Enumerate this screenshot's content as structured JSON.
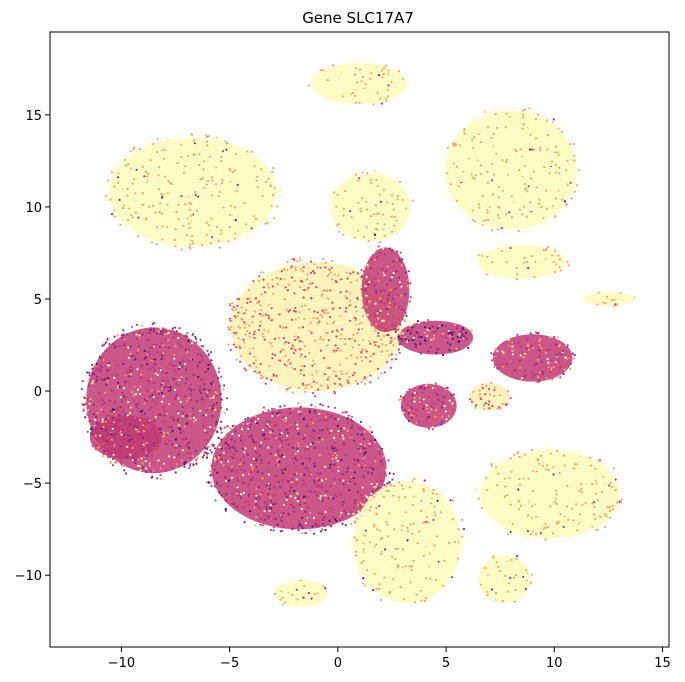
{
  "chart_data": {
    "type": "scatter",
    "title": "Gene SLC17A7",
    "xlabel": "",
    "ylabel": "",
    "xlim": [
      -13.3,
      15.3
    ],
    "ylim": [
      -13.9,
      19.5
    ],
    "xticks": [
      -10,
      -5,
      0,
      5,
      10,
      15
    ],
    "yticks": [
      -10,
      -5,
      0,
      5,
      10,
      15
    ],
    "xtick_labels": [
      "−10",
      "−5",
      "0",
      "5",
      "10",
      "15"
    ],
    "ytick_labels": [
      "−10",
      "−5",
      "0",
      "5",
      "10",
      "15"
    ],
    "grid": false,
    "legend": "none",
    "colormap": [
      "#fcfdbf",
      "#fe9f6d",
      "#de4968",
      "#b73779",
      "#8c2981",
      "#51127c"
    ],
    "clusters": [
      {
        "name": "top-center",
        "cx": 1.0,
        "cy": 16.7,
        "rx": 2.4,
        "ry": 1.2,
        "expr": 0.05
      },
      {
        "name": "top-left",
        "cx": -6.7,
        "cy": 10.8,
        "rx": 4.2,
        "ry": 3.2,
        "expr": 0.05
      },
      {
        "name": "top-mid",
        "cx": 1.5,
        "cy": 10.0,
        "rx": 2.0,
        "ry": 2.0,
        "expr": 0.08
      },
      {
        "name": "top-right",
        "cx": 8.0,
        "cy": 12.0,
        "rx": 3.3,
        "ry": 3.5,
        "expr": 0.06
      },
      {
        "name": "right-upper",
        "cx": 8.5,
        "cy": 7.0,
        "rx": 2.2,
        "ry": 1.0,
        "expr": 0.05
      },
      {
        "name": "right-spur",
        "cx": 12.5,
        "cy": 5.0,
        "rx": 1.3,
        "ry": 0.4,
        "expr": 0.05
      },
      {
        "name": "center-diffuse",
        "cx": -1.0,
        "cy": 3.5,
        "rx": 4.3,
        "ry": 3.8,
        "expr": 0.22
      },
      {
        "name": "center-diagonal",
        "cx": 2.2,
        "cy": 5.5,
        "rx": 1.2,
        "ry": 2.5,
        "expr": 0.55
      },
      {
        "name": "center-right-dark",
        "cx": 4.5,
        "cy": 2.9,
        "rx": 1.9,
        "ry": 1.0,
        "expr": 0.85
      },
      {
        "name": "right-pink",
        "cx": 9.0,
        "cy": 1.8,
        "rx": 2.0,
        "ry": 1.4,
        "expr": 0.5
      },
      {
        "name": "left-magenta",
        "cx": -8.5,
        "cy": -0.5,
        "rx": 3.4,
        "ry": 4.3,
        "expr": 0.62
      },
      {
        "name": "left-lower-magenta",
        "cx": -9.8,
        "cy": -2.5,
        "rx": 1.8,
        "ry": 1.3,
        "expr": 0.6
      },
      {
        "name": "center-lower-magenta",
        "cx": -1.8,
        "cy": -4.2,
        "rx": 4.4,
        "ry": 3.6,
        "expr": 0.63
      },
      {
        "name": "center-right-magenta",
        "cx": 4.2,
        "cy": -0.8,
        "rx": 1.4,
        "ry": 1.3,
        "expr": 0.55
      },
      {
        "name": "bottom-center",
        "cx": 3.2,
        "cy": -8.2,
        "rx": 2.7,
        "ry": 3.6,
        "expr": 0.05
      },
      {
        "name": "bottom-right",
        "cx": 9.8,
        "cy": -5.6,
        "rx": 3.5,
        "ry": 2.6,
        "expr": 0.06
      },
      {
        "name": "bottom-right-low",
        "cx": 7.7,
        "cy": -10.2,
        "rx": 1.3,
        "ry": 1.4,
        "expr": 0.05
      },
      {
        "name": "bottom-left",
        "cx": -1.7,
        "cy": -11.0,
        "rx": 1.3,
        "ry": 0.8,
        "expr": 0.05
      },
      {
        "name": "right-mid",
        "cx": 7.0,
        "cy": -0.3,
        "rx": 1.0,
        "ry": 0.8,
        "expr": 0.3
      }
    ]
  }
}
